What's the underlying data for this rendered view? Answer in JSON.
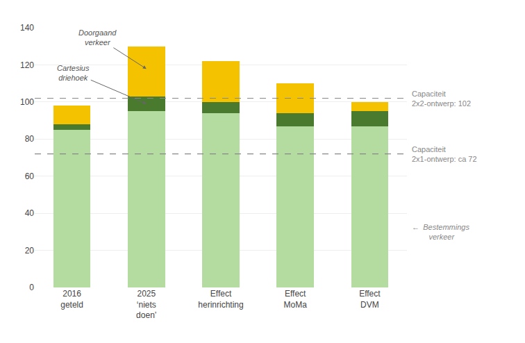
{
  "chart_data": {
    "type": "bar",
    "stacked": true,
    "categories": [
      "2016\ngeteld",
      "2025\n‘niets\ndoen’",
      "Effect\nherinrichting",
      "Effect\nMoMa",
      "Effect\nDVM"
    ],
    "series": [
      {
        "color": "#b5dca0",
        "values": [
          85,
          95,
          94,
          87,
          87
        ]
      },
      {
        "color": "#4a7a2e",
        "values": [
          3,
          8,
          6,
          7,
          8
        ]
      },
      {
        "color": "#f5c200",
        "values": [
          10,
          27,
          22,
          16,
          5
        ]
      }
    ],
    "lines": [
      {
        "y": 102,
        "label": "Capaciteit\n2x2-ontwerp: 102",
        "color": "#888888",
        "line_style": "dashed"
      },
      {
        "y": 72,
        "label": "Capaciteit\n2x1-ontwerp: ca 72",
        "color": "#888888",
        "line_style": "dashed"
      }
    ],
    "annotations": [
      {
        "text": "Doorgaand\nverkeer",
        "x": 1,
        "y": 117.85,
        "color": "#666666"
      },
      {
        "text": "Cartesius\ndriehoek",
        "x": 1,
        "y": 99,
        "color": "#666666"
      },
      {
        "text": "←  Bestemmings\n        verkeer",
        "y": 30
      }
    ],
    "ylim": [
      0,
      140
    ],
    "yticks": [
      0,
      20,
      40,
      60,
      80,
      100,
      120,
      140
    ],
    "grid": true
  }
}
